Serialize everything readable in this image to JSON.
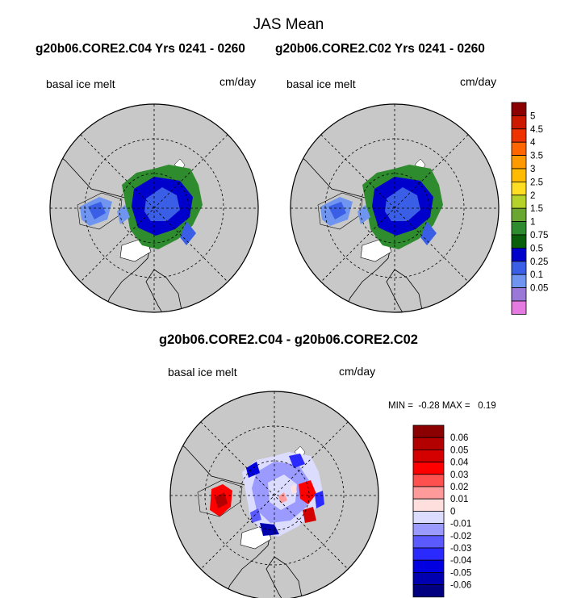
{
  "title": "JAS Mean",
  "subtitles": {
    "left": "g20b06.CORE2.C04  Yrs 0241 - 0260",
    "right": "g20b06.CORE2.C02  Yrs 0241 - 0260"
  },
  "panels": {
    "left": {
      "variable": "basal ice melt",
      "units": "cm/day"
    },
    "right": {
      "variable": "basal ice melt",
      "units": "cm/day"
    },
    "diff": {
      "variable": "basal ice melt",
      "units": "cm/day"
    }
  },
  "diff_title": "g20b06.CORE2.C04 - g20b06.CORE2.C02",
  "diff_stats": {
    "min_label": "MIN =",
    "min": "-0.28",
    "max_label": "MAX =",
    "max": "0.19"
  },
  "colors": {
    "land": "#c8c8c8",
    "ocean": "#ffffff"
  },
  "colorbar_mean": {
    "labels": [
      "5",
      "4.5",
      "4",
      "3.5",
      "3",
      "2.5",
      "2",
      "1.5",
      "1",
      "0.75",
      "0.5",
      "0.25",
      "0.1",
      "0.05"
    ],
    "colors": [
      "#8b0000",
      "#cc1a00",
      "#ee3300",
      "#ff6600",
      "#ff9900",
      "#ffbb00",
      "#ffdd22",
      "#b5d22b",
      "#6aa632",
      "#2e8b2e",
      "#0a5f0a",
      "#0000cc",
      "#3a5fe6",
      "#6f95f0",
      "#9a78d8",
      "#e57ae0"
    ]
  },
  "colorbar_diff": {
    "labels": [
      "0.06",
      "0.05",
      "0.04",
      "0.03",
      "0.02",
      "0.01",
      "0",
      "-0.01",
      "-0.02",
      "-0.03",
      "-0.04",
      "-0.05",
      "-0.06"
    ],
    "colors": [
      "#8b0000",
      "#b30000",
      "#d40000",
      "#ff0000",
      "#ff5050",
      "#ff9a9a",
      "#ffdede",
      "#dcdcff",
      "#9a9aff",
      "#5a5aff",
      "#2a2aff",
      "#0000e0",
      "#0000b0",
      "#000080"
    ]
  }
}
